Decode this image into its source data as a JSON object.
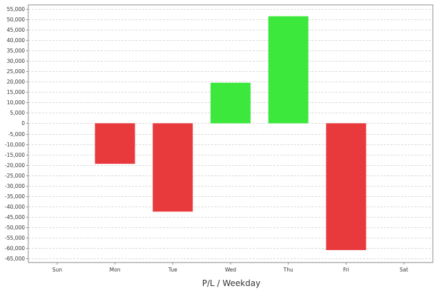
{
  "chart_data": {
    "type": "bar",
    "title": "",
    "xlabel": "P/L / Weekday",
    "ylabel": "",
    "categories": [
      "Sun",
      "Mon",
      "Tue",
      "Wed",
      "Thu",
      "Fri",
      "Sat"
    ],
    "values": [
      0,
      -19500,
      -42500,
      19500,
      51500,
      -61000,
      0
    ],
    "ylim": [
      -65000,
      55000
    ],
    "y_ticks": [
      55000,
      50000,
      45000,
      40000,
      35000,
      30000,
      25000,
      20000,
      15000,
      10000,
      5000,
      0,
      -5000,
      -10000,
      -15000,
      -20000,
      -25000,
      -30000,
      -35000,
      -40000,
      -45000,
      -50000,
      -55000,
      -60000,
      -65000
    ],
    "y_tick_labels": [
      "55,000",
      "50,000",
      "45,000",
      "40,000",
      "35,000",
      "30,000",
      "25,000",
      "20,000",
      "15,000",
      "10,000",
      "5,000",
      "0",
      "-5,000",
      "-10,000",
      "-15,000",
      "-20,000",
      "-25,000",
      "-30,000",
      "-35,000",
      "-40,000",
      "-45,000",
      "-50,000",
      "-55,000",
      "-60,000",
      "-65,000"
    ],
    "grid": true,
    "legend": "none",
    "colors": {
      "positive": "#3ce83c",
      "negative": "#e8393c",
      "grid": "#d9d9d9",
      "axis": "#8a8a8a",
      "text": "#333333"
    }
  }
}
